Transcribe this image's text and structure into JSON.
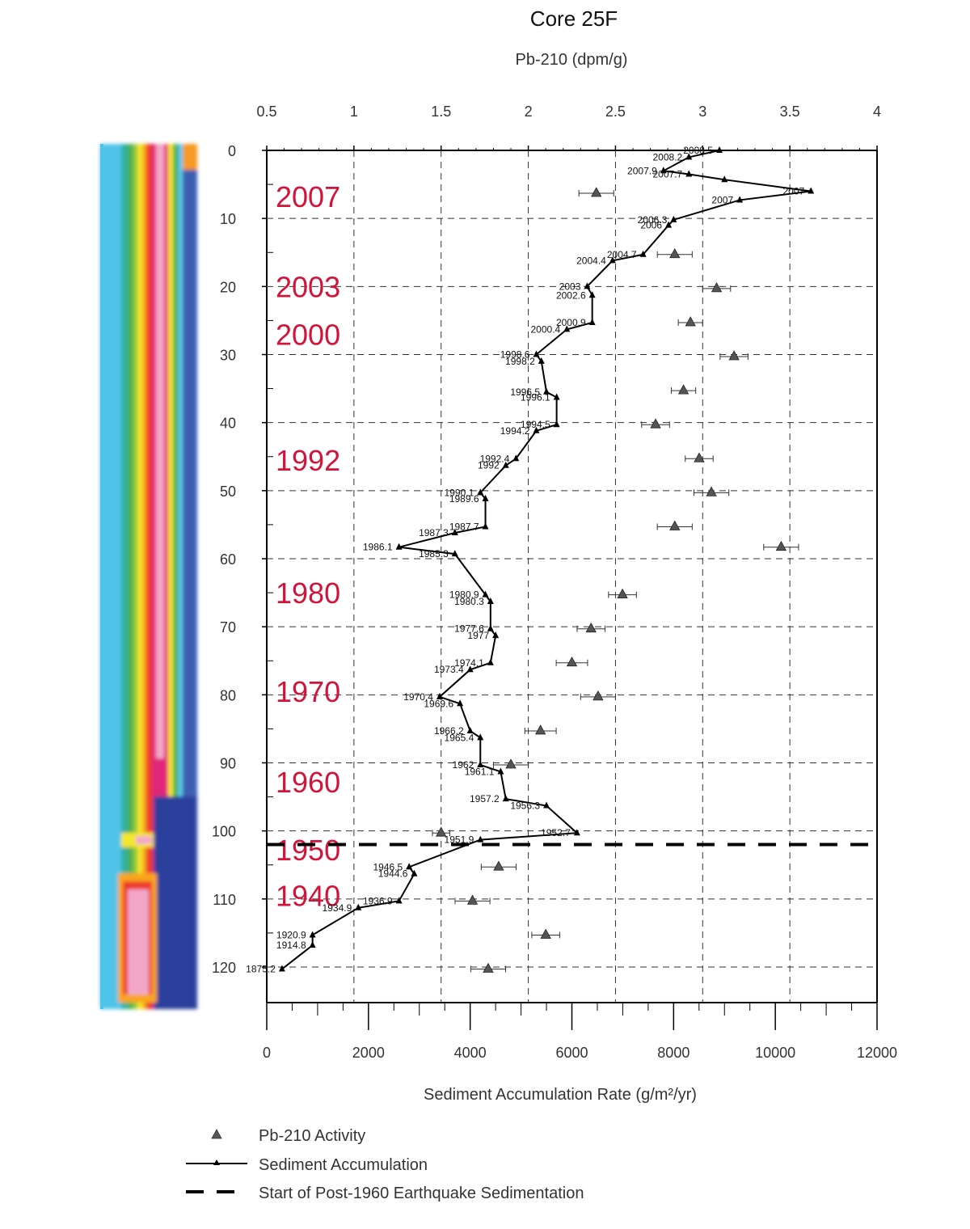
{
  "chart_data": {
    "type": "line",
    "title": "Core 25F",
    "top_axis": {
      "label": "Pb-210 (dpm/g)",
      "range": [
        0.5,
        4
      ],
      "ticks": [
        "0.5",
        "1",
        "1.5",
        "2",
        "2.5",
        "3",
        "3.5",
        "4"
      ]
    },
    "bottom_axis": {
      "label": "Sediment Accumulation Rate (g/m²/yr)",
      "range": [
        0,
        12000
      ],
      "ticks": [
        "0",
        "2000",
        "4000",
        "6000",
        "8000",
        "10000",
        "12000"
      ]
    },
    "y_axis": {
      "label": "",
      "range": [
        0,
        125
      ],
      "reversed": true,
      "ticks": [
        "0",
        "10",
        "20",
        "30",
        "40",
        "50",
        "60",
        "70",
        "80",
        "90",
        "100",
        "110",
        "120"
      ]
    },
    "grid": "dashed",
    "series": [
      {
        "name": "Sediment Accumulation",
        "axis": "bottom",
        "points": [
          {
            "depth": 0,
            "value": 8900,
            "label": "2008.5"
          },
          {
            "depth": 1,
            "value": 8300,
            "label": "2008.2"
          },
          {
            "depth": 3,
            "value": 7800,
            "label": "2007.9"
          },
          {
            "depth": 3.5,
            "value": 8300,
            "label": "2007.7"
          },
          {
            "depth": 4.3,
            "value": 9000,
            "label": ""
          },
          {
            "depth": 6,
            "value": 10700,
            "label": "2007"
          },
          {
            "depth": 7.3,
            "value": 9300,
            "label": "2007"
          },
          {
            "depth": 10.2,
            "value": 8000,
            "label": "2006.3"
          },
          {
            "depth": 11,
            "value": 7900,
            "label": "2006"
          },
          {
            "depth": 15.3,
            "value": 7400,
            "label": "2004.7"
          },
          {
            "depth": 16.2,
            "value": 6800,
            "label": "2004.4"
          },
          {
            "depth": 20,
            "value": 6300,
            "label": "2003"
          },
          {
            "depth": 21.3,
            "value": 6400,
            "label": "2002.6"
          },
          {
            "depth": 25.3,
            "value": 6400,
            "label": "2000.9"
          },
          {
            "depth": 26.3,
            "value": 5900,
            "label": "2000.4"
          },
          {
            "depth": 30,
            "value": 5300,
            "label": "1998.6"
          },
          {
            "depth": 31,
            "value": 5400,
            "label": "1998.2"
          },
          {
            "depth": 35.5,
            "value": 5500,
            "label": "1996.5"
          },
          {
            "depth": 36.3,
            "value": 5700,
            "label": "1996.1"
          },
          {
            "depth": 40.3,
            "value": 5700,
            "label": "1994.5"
          },
          {
            "depth": 41.2,
            "value": 5300,
            "label": "1994.2"
          },
          {
            "depth": 45.3,
            "value": 4900,
            "label": "1992.4"
          },
          {
            "depth": 46.3,
            "value": 4700,
            "label": "1992"
          },
          {
            "depth": 50.3,
            "value": 4200,
            "label": "1990.1"
          },
          {
            "depth": 51.2,
            "value": 4300,
            "label": "1989.6"
          },
          {
            "depth": 55.3,
            "value": 4300,
            "label": "1987.7"
          },
          {
            "depth": 56.2,
            "value": 3700,
            "label": "1987.3"
          },
          {
            "depth": 58.3,
            "value": 2600,
            "label": "1986.1"
          },
          {
            "depth": 59.3,
            "value": 3700,
            "label": "1985.3"
          },
          {
            "depth": 65.3,
            "value": 4300,
            "label": "1980.9"
          },
          {
            "depth": 66.3,
            "value": 4400,
            "label": "1980.3"
          },
          {
            "depth": 70.3,
            "value": 4400,
            "label": "1977.6"
          },
          {
            "depth": 71.3,
            "value": 4500,
            "label": "1977"
          },
          {
            "depth": 75.3,
            "value": 4400,
            "label": "1974.1"
          },
          {
            "depth": 76.3,
            "value": 4000,
            "label": "1973.4"
          },
          {
            "depth": 80.3,
            "value": 3400,
            "label": "1970.4"
          },
          {
            "depth": 81.3,
            "value": 3800,
            "label": "1969.6"
          },
          {
            "depth": 85.3,
            "value": 4000,
            "label": "1966.2"
          },
          {
            "depth": 86.3,
            "value": 4200,
            "label": "1965.4"
          },
          {
            "depth": 90.3,
            "value": 4200,
            "label": "1962"
          },
          {
            "depth": 91.3,
            "value": 4600,
            "label": "1961.1"
          },
          {
            "depth": 95.3,
            "value": 4700,
            "label": "1957.2"
          },
          {
            "depth": 96.3,
            "value": 5500,
            "label": "1956.3"
          },
          {
            "depth": 100.3,
            "value": 6100,
            "label": "1952.7"
          },
          {
            "depth": 101.3,
            "value": 4200,
            "label": "1951.9"
          },
          {
            "depth": 105.3,
            "value": 2800,
            "label": "1946.5"
          },
          {
            "depth": 106.3,
            "value": 2900,
            "label": "1944.6"
          },
          {
            "depth": 110.3,
            "value": 2600,
            "label": "1936.9"
          },
          {
            "depth": 111.3,
            "value": 1800,
            "label": "1934.9"
          },
          {
            "depth": 115.3,
            "value": 900,
            "label": "1920.9"
          },
          {
            "depth": 116.8,
            "value": 900,
            "label": "1914.8"
          },
          {
            "depth": 120.3,
            "value": 300,
            "label": "1875.2"
          }
        ]
      },
      {
        "name": "Pb-210 Activity",
        "axis": "top",
        "points": [
          {
            "depth": 6.3,
            "value": 2.39,
            "err": 0.1
          },
          {
            "depth": 15.3,
            "value": 2.84,
            "err": 0.1
          },
          {
            "depth": 20.3,
            "value": 3.08,
            "err": 0.08
          },
          {
            "depth": 25.3,
            "value": 2.93,
            "err": 0.07
          },
          {
            "depth": 30.3,
            "value": 3.18,
            "err": 0.08
          },
          {
            "depth": 35.3,
            "value": 2.89,
            "err": 0.07
          },
          {
            "depth": 40.3,
            "value": 2.73,
            "err": 0.08
          },
          {
            "depth": 45.3,
            "value": 2.98,
            "err": 0.08
          },
          {
            "depth": 50.3,
            "value": 3.05,
            "err": 0.1
          },
          {
            "depth": 55.3,
            "value": 2.84,
            "err": 0.1
          },
          {
            "depth": 58.3,
            "value": 3.45,
            "err": 0.1
          },
          {
            "depth": 65.3,
            "value": 2.54,
            "err": 0.08
          },
          {
            "depth": 70.3,
            "value": 2.36,
            "err": 0.08
          },
          {
            "depth": 75.3,
            "value": 2.25,
            "err": 0.09
          },
          {
            "depth": 80.3,
            "value": 2.4,
            "err": 0.1
          },
          {
            "depth": 85.3,
            "value": 2.07,
            "err": 0.09
          },
          {
            "depth": 90.3,
            "value": 1.9,
            "err": 0.1
          },
          {
            "depth": 100.3,
            "value": 1.5,
            "err": 0.05
          },
          {
            "depth": 105.3,
            "value": 1.83,
            "err": 0.1
          },
          {
            "depth": 110.3,
            "value": 1.68,
            "err": 0.1
          },
          {
            "depth": 115.3,
            "value": 2.1,
            "err": 0.08
          },
          {
            "depth": 120.3,
            "value": 1.77,
            "err": 0.1
          }
        ]
      }
    ],
    "reference_line": {
      "depth": 102,
      "label": "Start of Post-1960 Earthquake Sedimentation"
    },
    "year_annotations": [
      {
        "depth": 6.8,
        "text": "2007"
      },
      {
        "depth": 20,
        "text": "2003"
      },
      {
        "depth": 27,
        "text": "2000"
      },
      {
        "depth": 45.5,
        "text": "1992"
      },
      {
        "depth": 65,
        "text": "1980"
      },
      {
        "depth": 79.5,
        "text": "1970"
      },
      {
        "depth": 92.8,
        "text": "1960"
      },
      {
        "depth": 102.8,
        "text": "1950"
      },
      {
        "depth": 109.5,
        "text": "1940"
      }
    ],
    "legend": {
      "placement": "bottom-left",
      "entries": [
        {
          "marker": "triangle",
          "label": "Pb-210 Activity"
        },
        {
          "marker": "line-triangle",
          "label": "Sediment Accumulation"
        },
        {
          "marker": "dashed-line",
          "label": "Start of Post-1960 Earthquake Sedimentation"
        }
      ]
    }
  }
}
